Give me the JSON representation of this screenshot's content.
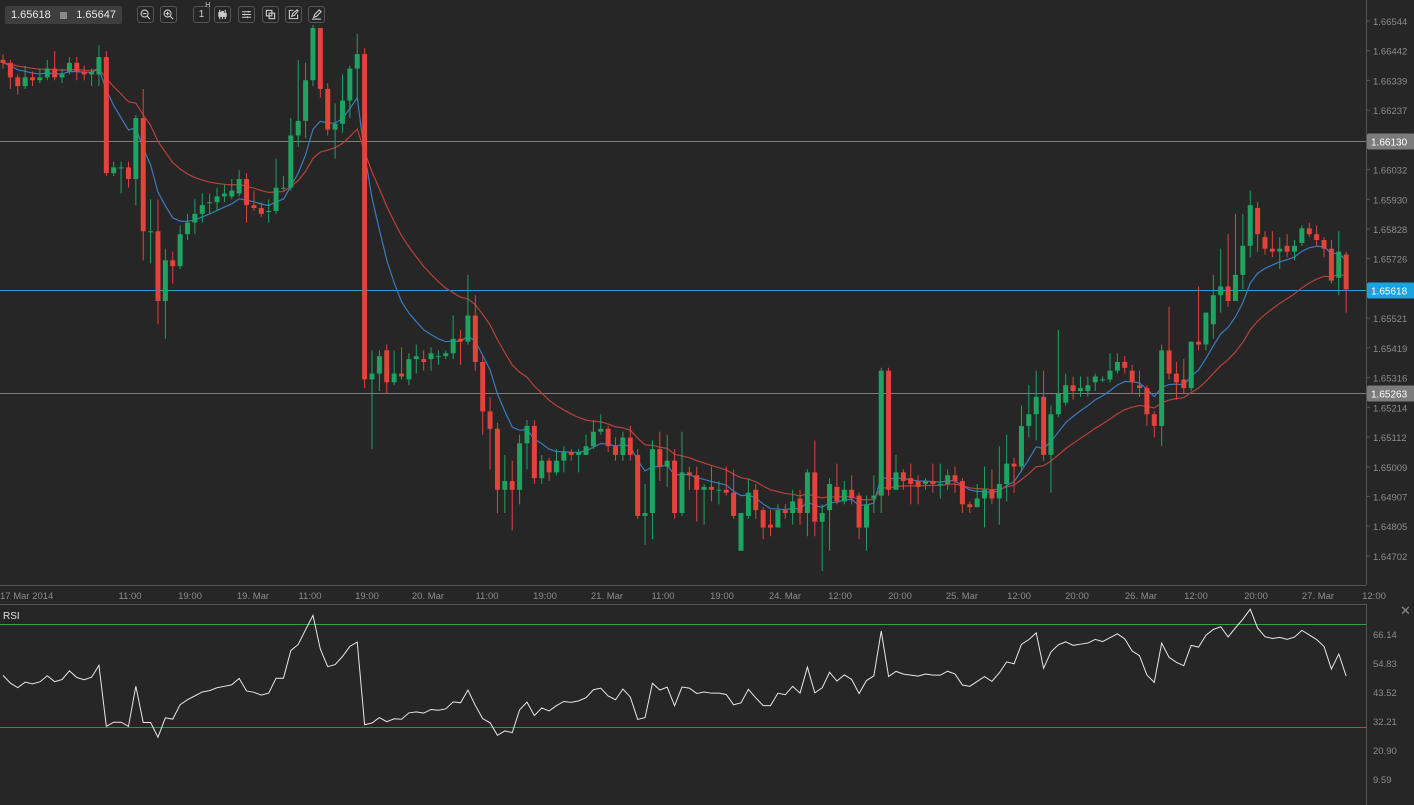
{
  "toolbar": {
    "bid": "1.65618",
    "ask": "1.65647",
    "timeframe": "1",
    "timeframe_unit": "H",
    "buttons": [
      "zoom-out-icon",
      "zoom-in-icon",
      "timeframe-icon",
      "candlestick-icon",
      "indicator-settings-icon",
      "copy-icon",
      "edit-icon",
      "draw-icon"
    ]
  },
  "chart_data": {
    "type": "candlestick",
    "colors": {
      "up": "#1ea362",
      "down": "#e2433b",
      "background": "#262626",
      "fast_ma": "#3a7bbf",
      "slow_ma": "#b8413a"
    },
    "y_ticks": [
      "1.66544",
      "1.66442",
      "1.66339",
      "1.66237",
      "1.66032",
      "1.65930",
      "1.65828",
      "1.65726",
      "1.65521",
      "1.65419",
      "1.65316",
      "1.65214",
      "1.65112",
      "1.65009",
      "1.64907",
      "1.64805",
      "1.64702"
    ],
    "x_ticks": [
      "17 Mar 2014",
      "11:00",
      "19:00",
      "19. Mar",
      "11:00",
      "19:00",
      "20. Mar",
      "11:00",
      "19:00",
      "21. Mar",
      "11:00",
      "19:00",
      "24. Mar",
      "12:00",
      "20:00",
      "25. Mar",
      "12:00",
      "20:00",
      "26. Mar",
      "12:00",
      "20:00",
      "27. Mar",
      "12:00"
    ],
    "price_lines": [
      {
        "value": "1.66130",
        "color": "#7c7c7c"
      },
      {
        "value": "1.65618",
        "color": "#1aa3df"
      },
      {
        "value": "1.65263",
        "color": "#7c7c7c"
      }
    ],
    "candles": [
      [
        1.6641,
        1.6643,
        1.6638,
        1.664
      ],
      [
        1.664,
        1.6641,
        1.6631,
        1.6635
      ],
      [
        1.6635,
        1.6636,
        1.6629,
        1.6632
      ],
      [
        1.6632,
        1.6639,
        1.6631,
        1.6635
      ],
      [
        1.6635,
        1.6637,
        1.6632,
        1.6634
      ],
      [
        1.6634,
        1.6638,
        1.6633,
        1.6635
      ],
      [
        1.6635,
        1.6641,
        1.6634,
        1.6638
      ],
      [
        1.6638,
        1.6644,
        1.6634,
        1.6635
      ],
      [
        1.6635,
        1.6638,
        1.6633,
        1.6636
      ],
      [
        1.6637,
        1.6642,
        1.6636,
        1.664
      ],
      [
        1.664,
        1.6642,
        1.6634,
        1.6637
      ],
      [
        1.6637,
        1.6639,
        1.6634,
        1.6636
      ],
      [
        1.6636,
        1.6638,
        1.6632,
        1.6637
      ],
      [
        1.6636,
        1.6646,
        1.6632,
        1.6642
      ],
      [
        1.6642,
        1.6644,
        1.6601,
        1.6602
      ],
      [
        1.6602,
        1.6606,
        1.6601,
        1.6604
      ],
      [
        1.6604,
        1.6606,
        1.6595,
        1.6604
      ],
      [
        1.6604,
        1.6606,
        1.6597,
        1.66
      ],
      [
        1.66,
        1.6622,
        1.6591,
        1.6621
      ],
      [
        1.6621,
        1.6631,
        1.6572,
        1.6582
      ],
      [
        1.6582,
        1.6593,
        1.6571,
        1.6582
      ],
      [
        1.6582,
        1.6593,
        1.655,
        1.6558
      ],
      [
        1.6558,
        1.6576,
        1.6545,
        1.6572
      ],
      [
        1.6572,
        1.6575,
        1.6564,
        1.657
      ],
      [
        1.657,
        1.6584,
        1.6569,
        1.6581
      ],
      [
        1.6581,
        1.6588,
        1.6579,
        1.6585
      ],
      [
        1.6585,
        1.6593,
        1.6581,
        1.6588
      ],
      [
        1.6588,
        1.6595,
        1.6585,
        1.6591
      ],
      [
        1.6592,
        1.6595,
        1.6588,
        1.6592
      ],
      [
        1.6592,
        1.6597,
        1.6589,
        1.6594
      ],
      [
        1.6594,
        1.6598,
        1.6592,
        1.6595
      ],
      [
        1.6594,
        1.66,
        1.6593,
        1.6596
      ],
      [
        1.6595,
        1.6603,
        1.6594,
        1.66
      ],
      [
        1.66,
        1.6602,
        1.6585,
        1.6591
      ],
      [
        1.6591,
        1.6596,
        1.6589,
        1.659
      ],
      [
        1.659,
        1.6592,
        1.6587,
        1.6588
      ],
      [
        1.6589,
        1.6593,
        1.6585,
        1.6589
      ],
      [
        1.6589,
        1.6607,
        1.6588,
        1.6597
      ],
      [
        1.6597,
        1.6601,
        1.6596,
        1.6597
      ],
      [
        1.6597,
        1.6621,
        1.6596,
        1.6615
      ],
      [
        1.6615,
        1.6641,
        1.6611,
        1.662
      ],
      [
        1.662,
        1.664,
        1.6614,
        1.6634
      ],
      [
        1.6634,
        1.6653,
        1.6632,
        1.6652
      ],
      [
        1.6652,
        1.6652,
        1.6628,
        1.6631
      ],
      [
        1.6631,
        1.6633,
        1.6615,
        1.6617
      ],
      [
        1.6617,
        1.6626,
        1.6607,
        1.6619
      ],
      [
        1.6619,
        1.6636,
        1.6616,
        1.6627
      ],
      [
        1.6627,
        1.6639,
        1.6621,
        1.6638
      ],
      [
        1.6638,
        1.665,
        1.6627,
        1.6643
      ],
      [
        1.6643,
        1.6645,
        1.6528,
        1.6531
      ],
      [
        1.6531,
        1.6541,
        1.6507,
        1.6533
      ],
      [
        1.6533,
        1.6541,
        1.6527,
        1.6539
      ],
      [
        1.6541,
        1.6543,
        1.6526,
        1.653
      ],
      [
        1.653,
        1.6541,
        1.6529,
        1.6533
      ],
      [
        1.6533,
        1.6542,
        1.6531,
        1.6532
      ],
      [
        1.6531,
        1.654,
        1.6529,
        1.6538
      ],
      [
        1.6538,
        1.6543,
        1.6533,
        1.6539
      ],
      [
        1.6538,
        1.6541,
        1.6534,
        1.6537
      ],
      [
        1.6538,
        1.6542,
        1.6534,
        1.654
      ],
      [
        1.6539,
        1.6541,
        1.6536,
        1.6539
      ],
      [
        1.6539,
        1.6541,
        1.6538,
        1.654
      ],
      [
        1.654,
        1.6553,
        1.6538,
        1.6545
      ],
      [
        1.6545,
        1.6548,
        1.6536,
        1.6544
      ],
      [
        1.6544,
        1.6567,
        1.6543,
        1.6553
      ],
      [
        1.6553,
        1.656,
        1.6534,
        1.6537
      ],
      [
        1.6537,
        1.6539,
        1.6512,
        1.652
      ],
      [
        1.652,
        1.6525,
        1.65,
        1.6514
      ],
      [
        1.6514,
        1.6516,
        1.6485,
        1.6493
      ],
      [
        1.6493,
        1.6505,
        1.6485,
        1.6496
      ],
      [
        1.6496,
        1.6503,
        1.6479,
        1.6493
      ],
      [
        1.6493,
        1.6512,
        1.6488,
        1.6509
      ],
      [
        1.6509,
        1.6517,
        1.65,
        1.6515
      ],
      [
        1.6515,
        1.6517,
        1.6495,
        1.6497
      ],
      [
        1.6497,
        1.6505,
        1.6495,
        1.6503
      ],
      [
        1.6503,
        1.6504,
        1.6496,
        1.6499
      ],
      [
        1.6499,
        1.6507,
        1.6498,
        1.6503
      ],
      [
        1.6503,
        1.6508,
        1.6499,
        1.6506
      ],
      [
        1.6506,
        1.6507,
        1.6503,
        1.6505
      ],
      [
        1.6505,
        1.6507,
        1.6499,
        1.6506
      ],
      [
        1.6505,
        1.6512,
        1.6505,
        1.6508
      ],
      [
        1.6508,
        1.6517,
        1.6507,
        1.6513
      ],
      [
        1.6513,
        1.6519,
        1.6512,
        1.6514
      ],
      [
        1.6514,
        1.6515,
        1.6506,
        1.6508
      ],
      [
        1.6508,
        1.6511,
        1.6503,
        1.6505
      ],
      [
        1.6505,
        1.6513,
        1.6503,
        1.6511
      ],
      [
        1.6511,
        1.6515,
        1.6503,
        1.6505
      ],
      [
        1.6505,
        1.6507,
        1.6483,
        1.6484
      ],
      [
        1.6484,
        1.6495,
        1.6474,
        1.6485
      ],
      [
        1.6485,
        1.651,
        1.6476,
        1.6507
      ],
      [
        1.6507,
        1.6513,
        1.6496,
        1.6501
      ],
      [
        1.6501,
        1.6512,
        1.6494,
        1.6503
      ],
      [
        1.6503,
        1.6507,
        1.6483,
        1.6485
      ],
      [
        1.6485,
        1.6513,
        1.6484,
        1.6499
      ],
      [
        1.6499,
        1.6501,
        1.6493,
        1.6498
      ],
      [
        1.6498,
        1.6501,
        1.6482,
        1.6493
      ],
      [
        1.6493,
        1.6495,
        1.6481,
        1.6494
      ],
      [
        1.6494,
        1.6501,
        1.6489,
        1.6493
      ],
      [
        1.6493,
        1.6496,
        1.6488,
        1.6493
      ],
      [
        1.6493,
        1.6501,
        1.6491,
        1.6492
      ],
      [
        1.6492,
        1.65,
        1.6483,
        1.6484
      ],
      [
        1.6472,
        1.6485,
        1.6472,
        1.6485
      ],
      [
        1.6484,
        1.6497,
        1.6483,
        1.6492
      ],
      [
        1.6493,
        1.6495,
        1.6483,
        1.6486
      ],
      [
        1.6486,
        1.6487,
        1.6476,
        1.648
      ],
      [
        1.6481,
        1.6486,
        1.6477,
        1.648
      ],
      [
        1.648,
        1.6488,
        1.648,
        1.6486
      ],
      [
        1.6486,
        1.6488,
        1.6483,
        1.6485
      ],
      [
        1.6485,
        1.6493,
        1.6481,
        1.6489
      ],
      [
        1.649,
        1.6493,
        1.6481,
        1.6485
      ],
      [
        1.6485,
        1.65,
        1.6477,
        1.6499
      ],
      [
        1.6499,
        1.651,
        1.6477,
        1.6482
      ],
      [
        1.6482,
        1.6488,
        1.6465,
        1.6485
      ],
      [
        1.6486,
        1.6497,
        1.6472,
        1.6495
      ],
      [
        1.6494,
        1.6502,
        1.6488,
        1.6489
      ],
      [
        1.6489,
        1.6496,
        1.6488,
        1.6493
      ],
      [
        1.6493,
        1.6498,
        1.6488,
        1.649
      ],
      [
        1.6491,
        1.6492,
        1.6476,
        1.648
      ],
      [
        1.648,
        1.6491,
        1.6472,
        1.6488
      ],
      [
        1.649,
        1.6498,
        1.6485,
        1.6491
      ],
      [
        1.6491,
        1.6535,
        1.6485,
        1.6534
      ],
      [
        1.6534,
        1.6535,
        1.6491,
        1.6493
      ],
      [
        1.6493,
        1.6505,
        1.6493,
        1.6499
      ],
      [
        1.6499,
        1.65,
        1.6493,
        1.6496
      ],
      [
        1.6497,
        1.6502,
        1.6488,
        1.6495
      ],
      [
        1.6496,
        1.6498,
        1.6488,
        1.6494
      ],
      [
        1.6495,
        1.6497,
        1.6493,
        1.6496
      ],
      [
        1.6496,
        1.6502,
        1.6492,
        1.6495
      ],
      [
        1.6495,
        1.6502,
        1.649,
        1.6495
      ],
      [
        1.6495,
        1.65,
        1.6493,
        1.6498
      ],
      [
        1.6498,
        1.6501,
        1.6492,
        1.6496
      ],
      [
        1.6496,
        1.6497,
        1.6485,
        1.6488
      ],
      [
        1.6488,
        1.6489,
        1.6485,
        1.6487
      ],
      [
        1.6487,
        1.6495,
        1.6487,
        1.649
      ],
      [
        1.649,
        1.6501,
        1.648,
        1.6493
      ],
      [
        1.6493,
        1.65,
        1.6488,
        1.649
      ],
      [
        1.649,
        1.6508,
        1.6481,
        1.6495
      ],
      [
        1.6495,
        1.6512,
        1.6489,
        1.6502
      ],
      [
        1.6502,
        1.6504,
        1.6492,
        1.6501
      ],
      [
        1.6501,
        1.6522,
        1.6499,
        1.6515
      ],
      [
        1.6515,
        1.6529,
        1.6511,
        1.6519
      ],
      [
        1.6519,
        1.6534,
        1.651,
        1.6525
      ],
      [
        1.6525,
        1.6534,
        1.6503,
        1.6505
      ],
      [
        1.6505,
        1.6522,
        1.6492,
        1.6519
      ],
      [
        1.6519,
        1.6548,
        1.6518,
        1.6526
      ],
      [
        1.6523,
        1.6533,
        1.6522,
        1.6529
      ],
      [
        1.6529,
        1.6532,
        1.6524,
        1.6527
      ],
      [
        1.6527,
        1.6532,
        1.6525,
        1.6528
      ],
      [
        1.6527,
        1.6532,
        1.6525,
        1.6529
      ],
      [
        1.653,
        1.6533,
        1.6527,
        1.6532
      ],
      [
        1.6531,
        1.6532,
        1.653,
        1.6531
      ],
      [
        1.6531,
        1.654,
        1.653,
        1.6534
      ],
      [
        1.6534,
        1.654,
        1.6533,
        1.6537
      ],
      [
        1.6537,
        1.6539,
        1.6533,
        1.6535
      ],
      [
        1.6534,
        1.6536,
        1.6526,
        1.653
      ],
      [
        1.6529,
        1.6534,
        1.6525,
        1.6528
      ],
      [
        1.6528,
        1.6529,
        1.6515,
        1.6519
      ],
      [
        1.6519,
        1.652,
        1.6511,
        1.6515
      ],
      [
        1.6515,
        1.6543,
        1.6508,
        1.6541
      ],
      [
        1.6541,
        1.6556,
        1.6531,
        1.6533
      ],
      [
        1.6533,
        1.6537,
        1.6524,
        1.653
      ],
      [
        1.6531,
        1.6538,
        1.6526,
        1.6528
      ],
      [
        1.6528,
        1.6544,
        1.6527,
        1.6544
      ],
      [
        1.6544,
        1.6563,
        1.6541,
        1.6543
      ],
      [
        1.6543,
        1.6554,
        1.6541,
        1.6554
      ],
      [
        1.655,
        1.6567,
        1.6545,
        1.656
      ],
      [
        1.656,
        1.6576,
        1.6554,
        1.6563
      ],
      [
        1.6563,
        1.6581,
        1.6556,
        1.6558
      ],
      [
        1.6558,
        1.6588,
        1.6558,
        1.6567
      ],
      [
        1.6567,
        1.6588,
        1.6562,
        1.6577
      ],
      [
        1.6577,
        1.6596,
        1.6573,
        1.6591
      ],
      [
        1.659,
        1.6592,
        1.6575,
        1.6581
      ],
      [
        1.658,
        1.6582,
        1.6574,
        1.6576
      ],
      [
        1.6576,
        1.6582,
        1.6573,
        1.6575
      ],
      [
        1.6575,
        1.658,
        1.6569,
        1.6576
      ],
      [
        1.6577,
        1.6581,
        1.6573,
        1.6575
      ],
      [
        1.6575,
        1.6579,
        1.6572,
        1.6577
      ],
      [
        1.6578,
        1.6584,
        1.6577,
        1.6583
      ],
      [
        1.6583,
        1.6585,
        1.658,
        1.6581
      ],
      [
        1.6581,
        1.6584,
        1.6577,
        1.6579
      ],
      [
        1.6579,
        1.658,
        1.6573,
        1.6576
      ],
      [
        1.6576,
        1.6579,
        1.6564,
        1.6565
      ],
      [
        1.6566,
        1.6582,
        1.656,
        1.6575
      ],
      [
        1.6574,
        1.6575,
        1.6554,
        1.6562
      ]
    ]
  },
  "rsi": {
    "label": "RSI",
    "y_ticks": [
      "66.14",
      "54.83",
      "43.52",
      "32.21",
      "20.90",
      "9.59"
    ],
    "overbought": 70,
    "oversold": 30,
    "colors": {
      "line": "#e6e6e6",
      "overbought": "#3a9d4a",
      "oversold": "#b84a44"
    }
  }
}
